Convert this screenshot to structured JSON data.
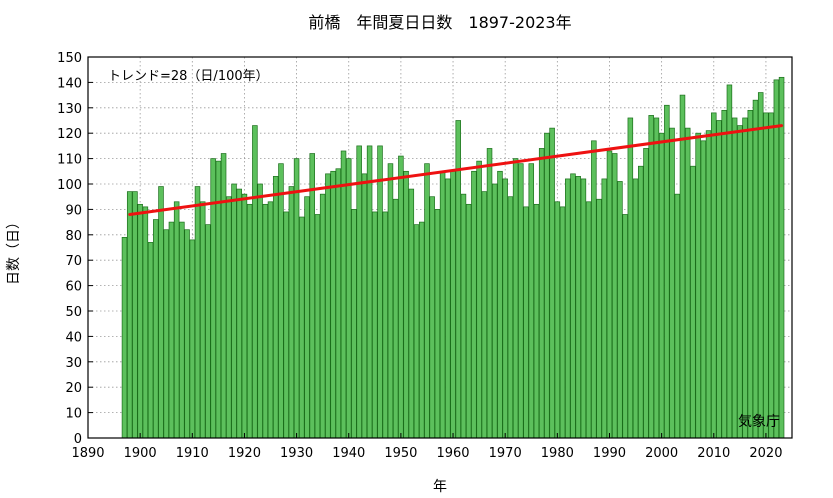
{
  "chart_data": {
    "type": "bar",
    "title": "前橋　年間夏日日数　1897-2023年",
    "xlabel": "年",
    "ylabel": "日数（日）",
    "trend_label": "トレンド=28（日/100年）",
    "source_label": "気象庁",
    "xlim": [
      1890,
      2025
    ],
    "ylim": [
      0,
      150
    ],
    "xticks": [
      1890,
      1900,
      1910,
      1920,
      1930,
      1940,
      1950,
      1960,
      1970,
      1980,
      1990,
      2000,
      2010,
      2020
    ],
    "yticks": [
      0,
      10,
      20,
      30,
      40,
      50,
      60,
      70,
      80,
      90,
      100,
      110,
      120,
      130,
      140,
      150
    ],
    "grid": true,
    "bar_color": "#5cc05c",
    "bar_edge_color": "#1a6e1a",
    "trend_color": "#ee1111",
    "x_start": 1897,
    "values": [
      79,
      97,
      97,
      92,
      91,
      77,
      86,
      99,
      82,
      85,
      93,
      85,
      82,
      78,
      99,
      93,
      84,
      110,
      109,
      112,
      95,
      100,
      98,
      96,
      92,
      123,
      100,
      92,
      93,
      103,
      108,
      89,
      99,
      110,
      87,
      95,
      112,
      88,
      96,
      104,
      105,
      106,
      113,
      110,
      90,
      115,
      104,
      115,
      89,
      115,
      89,
      108,
      94,
      111,
      105,
      98,
      84,
      85,
      108,
      95,
      90,
      105,
      102,
      105,
      125,
      96,
      92,
      105,
      109,
      97,
      114,
      100,
      105,
      102,
      95,
      110,
      108,
      91,
      108,
      92,
      114,
      120,
      122,
      93,
      91,
      102,
      104,
      103,
      102,
      93,
      117,
      94,
      102,
      113,
      112,
      101,
      88,
      126,
      102,
      107,
      114,
      127,
      126,
      120,
      131,
      122,
      96,
      135,
      122,
      107,
      120,
      117,
      121,
      128,
      125,
      129,
      139,
      126,
      123,
      126,
      129,
      133,
      136,
      128,
      128,
      141,
      142
    ],
    "trend": {
      "x": [
        1898,
        2023
      ],
      "y": [
        88,
        123
      ]
    }
  }
}
